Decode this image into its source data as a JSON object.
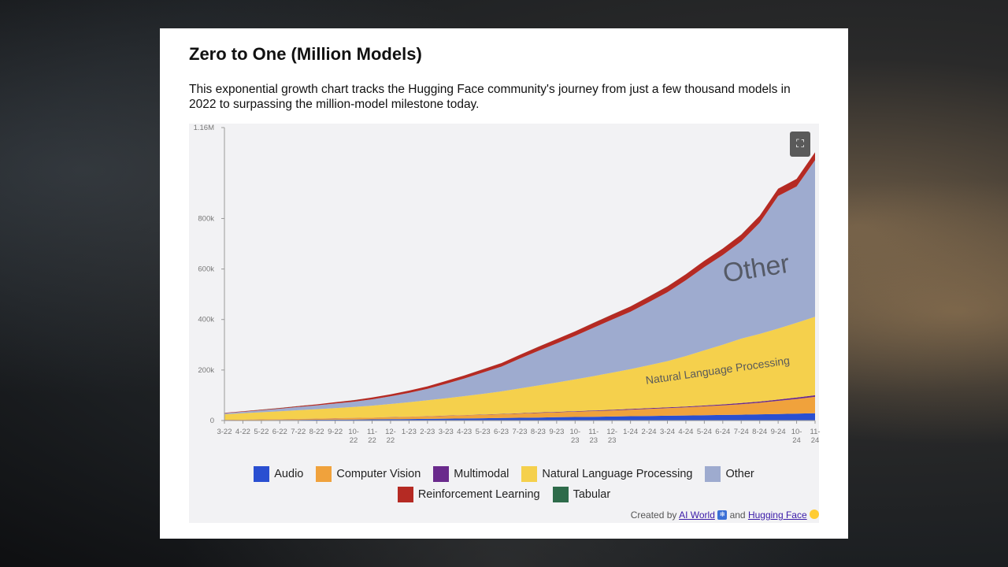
{
  "page": {
    "title": "Zero to One (Million Models)",
    "description": "This exponential growth chart tracks the Hugging Face community's journey from just a few thousand models in 2022 to surpassing the million-model milestone today.",
    "credit_prefix": "Created by",
    "credit_link1": "AI World",
    "credit_middle": "and",
    "credit_link2": "Hugging Face",
    "expand_icon": "expand-icon"
  },
  "chart_data": {
    "type": "area",
    "stacked": true,
    "title": "",
    "xlabel": "",
    "ylabel": "",
    "ylim": [
      0,
      1160000
    ],
    "y_ticks": [
      0,
      200000,
      400000,
      600000,
      800000,
      1160000
    ],
    "y_tick_labels": [
      "0",
      "200k",
      "400k",
      "600k",
      "800k",
      "1.16M"
    ],
    "x": [
      "3-22",
      "4-22",
      "5-22",
      "6-22",
      "7-22",
      "8-22",
      "9-22",
      "10-22",
      "11-22",
      "12-22",
      "1-23",
      "2-23",
      "3-23",
      "4-23",
      "5-23",
      "6-23",
      "7-23",
      "8-23",
      "9-23",
      "10-23",
      "11-23",
      "12-23",
      "1-24",
      "2-24",
      "3-24",
      "4-24",
      "5-24",
      "6-24",
      "7-24",
      "8-24",
      "9-24",
      "10-24",
      "11-24"
    ],
    "x_tick_labels": [
      "3-22",
      "4-22",
      "5-22",
      "6-22",
      "7-22",
      "8-22",
      "9-22",
      "10-\n22",
      "11-\n22",
      "12-\n22",
      "1-23",
      "2-23",
      "3-23",
      "4-23",
      "5-23",
      "6-23",
      "7-23",
      "8-23",
      "9-23",
      "10-\n23",
      "11-\n23",
      "12-\n23",
      "1-24",
      "2-24",
      "3-24",
      "4-24",
      "5-24",
      "6-24",
      "7-24",
      "8-24",
      "9-24",
      "10-\n24",
      "11-\n24"
    ],
    "legend_position": "bottom",
    "grid": false,
    "annotations": [
      "Other",
      "Natural Language Processing"
    ],
    "series": [
      {
        "name": "Audio",
        "color": "#2a4fd1",
        "values": [
          1000,
          1300,
          1700,
          2100,
          2500,
          3000,
          3500,
          4000,
          4600,
          5200,
          5900,
          6600,
          7400,
          8200,
          9000,
          10000,
          11000,
          12000,
          13000,
          14000,
          15000,
          16000,
          17000,
          18000,
          19000,
          20000,
          21000,
          22000,
          23000,
          24500,
          26000,
          27500,
          29000
        ]
      },
      {
        "name": "Computer Vision",
        "color": "#f0a23c",
        "values": [
          1500,
          2000,
          2600,
          3200,
          3800,
          4500,
          5200,
          6000,
          6800,
          7700,
          8700,
          9800,
          11000,
          12300,
          13600,
          15000,
          16500,
          18000,
          19500,
          21000,
          22500,
          24000,
          26000,
          28000,
          30000,
          32000,
          35000,
          38000,
          42000,
          46000,
          52000,
          58000,
          65000
        ]
      },
      {
        "name": "Multimodal",
        "color": "#6a2a8c",
        "values": [
          200,
          250,
          300,
          350,
          400,
          450,
          500,
          550,
          600,
          700,
          800,
          900,
          1000,
          1100,
          1200,
          1300,
          1500,
          1700,
          1900,
          2100,
          2300,
          2500,
          2700,
          2900,
          3100,
          3400,
          3700,
          4000,
          4300,
          4600,
          5000,
          5500,
          6000
        ]
      },
      {
        "name": "Natural Language Processing",
        "color": "#f5d04c",
        "values": [
          22000,
          25000,
          28000,
          31000,
          34000,
          37000,
          40000,
          43000,
          47000,
          52000,
          57000,
          63000,
          69000,
          75000,
          82000,
          89000,
          98000,
          107000,
          116000,
          126000,
          136000,
          147000,
          158000,
          170000,
          183000,
          200000,
          218000,
          236000,
          255000,
          268000,
          281000,
          296000,
          311000
        ]
      },
      {
        "name": "Other",
        "color": "#9eabcf",
        "values": [
          4000,
          6000,
          8000,
          10000,
          13000,
          15000,
          18000,
          21000,
          25000,
          30000,
          37000,
          45000,
          57000,
          70000,
          84000,
          98000,
          118000,
          137000,
          155000,
          172000,
          192000,
          210000,
          227000,
          250000,
          273000,
          300000,
          330000,
          355000,
          385000,
          440000,
          525000,
          540000,
          620000
        ]
      },
      {
        "name": "Reinforcement Learning",
        "color": "#b52a23",
        "values": [
          1500,
          2000,
          2500,
          3000,
          3500,
          4000,
          5000,
          6000,
          7000,
          8000,
          9000,
          10000,
          11000,
          12000,
          13000,
          14000,
          15000,
          16000,
          17000,
          18000,
          19000,
          20000,
          21000,
          22000,
          23000,
          24000,
          25000,
          26000,
          27000,
          28000,
          29000,
          30000,
          31000
        ]
      },
      {
        "name": "Tabular",
        "color": "#2e6b4a",
        "values": [
          100,
          100,
          100,
          100,
          100,
          100,
          100,
          100,
          100,
          100,
          100,
          100,
          100,
          100,
          100,
          100,
          100,
          100,
          100,
          100,
          100,
          100,
          100,
          100,
          100,
          100,
          100,
          100,
          100,
          100,
          100,
          100,
          100
        ]
      }
    ]
  }
}
